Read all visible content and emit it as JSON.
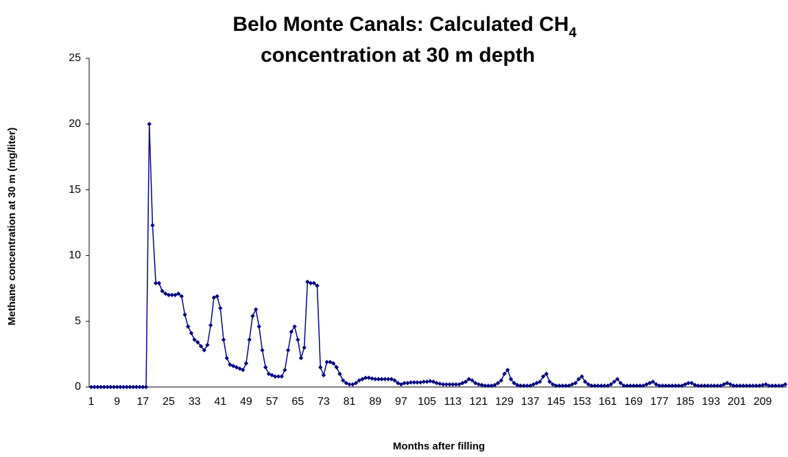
{
  "chart_data": {
    "type": "line",
    "title": {
      "text": "Belo Monte Canals: Calculated CH",
      "subscript": "4",
      "line2": "concentration at 30 m depth"
    },
    "x_label": "Months after filling",
    "y_label": "Methane concentration at 30 m (mg/liter)",
    "categories": [
      "1",
      null,
      null,
      null,
      null,
      null,
      null,
      null,
      "9",
      null,
      null,
      null,
      null,
      null,
      null,
      null,
      "17",
      null,
      null,
      null,
      null,
      null,
      null,
      null,
      "25",
      null,
      null,
      null,
      null,
      null,
      null,
      null,
      "33",
      null,
      null,
      null,
      null,
      null,
      null,
      null,
      "41",
      null,
      null,
      null,
      null,
      null,
      null,
      null,
      "49",
      null,
      null,
      null,
      null,
      null,
      null,
      null,
      "57",
      null,
      null,
      null,
      null,
      null,
      null,
      null,
      "65",
      null,
      null,
      null,
      null,
      null,
      null,
      null,
      "73",
      null,
      null,
      null,
      null,
      null,
      null,
      null,
      "81",
      null,
      null,
      null,
      null,
      null,
      null,
      null,
      "89",
      null,
      null,
      null,
      null,
      null,
      null,
      null,
      "97",
      null,
      null,
      null,
      null,
      null,
      null,
      null,
      "105",
      null,
      null,
      null,
      null,
      null,
      null,
      null,
      "113",
      null,
      null,
      null,
      null,
      null,
      null,
      null,
      "121",
      null,
      null,
      null,
      null,
      null,
      null,
      null,
      "129",
      null,
      null,
      null,
      null,
      null,
      null,
      null,
      "137",
      null,
      null,
      null,
      null,
      null,
      null,
      null,
      "145",
      null,
      null,
      null,
      null,
      null,
      null,
      null,
      "153",
      null,
      null,
      null,
      null,
      null,
      null,
      null,
      "161",
      null,
      null,
      null,
      null,
      null,
      null,
      null,
      "169",
      null,
      null,
      null,
      null,
      null,
      null,
      null,
      "177",
      null,
      null,
      null,
      null,
      null,
      null,
      null,
      "185",
      null,
      null,
      null,
      null,
      null,
      null,
      null,
      "193",
      null,
      null,
      null,
      null,
      null,
      null,
      null,
      "201",
      null,
      null,
      null,
      null,
      null,
      null,
      null,
      "209",
      null,
      null,
      null,
      null,
      null,
      null,
      null
    ],
    "series": [
      {
        "name": "Methane concentration",
        "color": "#000080",
        "values": [
          0,
          0,
          0,
          0,
          0,
          0,
          0,
          0,
          0,
          0,
          0,
          0,
          0,
          0,
          0,
          0,
          0,
          0,
          20,
          12.3,
          7.9,
          7.9,
          7.3,
          7.1,
          7.0,
          7.0,
          7.0,
          7.1,
          6.9,
          5.5,
          4.6,
          4.1,
          3.6,
          3.4,
          3.1,
          2.8,
          3.2,
          4.7,
          6.8,
          6.9,
          6.0,
          3.6,
          2.2,
          1.7,
          1.6,
          1.5,
          1.4,
          1.3,
          1.8,
          3.6,
          5.4,
          5.9,
          4.6,
          2.8,
          1.5,
          1.0,
          0.9,
          0.8,
          0.8,
          0.8,
          1.3,
          2.8,
          4.2,
          4.6,
          3.6,
          2.2,
          3.0,
          8.0,
          7.9,
          7.9,
          7.7,
          1.5,
          0.9,
          1.9,
          1.9,
          1.8,
          1.5,
          1.0,
          0.5,
          0.3,
          0.2,
          0.2,
          0.3,
          0.5,
          0.6,
          0.7,
          0.7,
          0.65,
          0.6,
          0.6,
          0.6,
          0.6,
          0.6,
          0.6,
          0.5,
          0.3,
          0.2,
          0.3,
          0.3,
          0.35,
          0.35,
          0.35,
          0.35,
          0.4,
          0.4,
          0.45,
          0.4,
          0.3,
          0.25,
          0.2,
          0.2,
          0.2,
          0.2,
          0.2,
          0.2,
          0.3,
          0.4,
          0.6,
          0.5,
          0.3,
          0.2,
          0.15,
          0.1,
          0.1,
          0.1,
          0.15,
          0.3,
          0.5,
          1.0,
          1.3,
          0.6,
          0.3,
          0.15,
          0.1,
          0.1,
          0.1,
          0.1,
          0.2,
          0.3,
          0.4,
          0.8,
          1.0,
          0.4,
          0.2,
          0.1,
          0.1,
          0.1,
          0.1,
          0.1,
          0.2,
          0.3,
          0.6,
          0.8,
          0.4,
          0.2,
          0.1,
          0.1,
          0.1,
          0.1,
          0.1,
          0.1,
          0.2,
          0.4,
          0.6,
          0.3,
          0.1,
          0.1,
          0.1,
          0.1,
          0.1,
          0.1,
          0.1,
          0.2,
          0.3,
          0.4,
          0.2,
          0.1,
          0.1,
          0.1,
          0.1,
          0.1,
          0.1,
          0.1,
          0.1,
          0.2,
          0.3,
          0.3,
          0.15,
          0.1,
          0.1,
          0.1,
          0.1,
          0.1,
          0.1,
          0.1,
          0.1,
          0.2,
          0.3,
          0.2,
          0.1,
          0.1,
          0.1,
          0.1,
          0.1,
          0.1,
          0.1,
          0.1,
          0.1,
          0.15,
          0.2,
          0.1,
          0.1,
          0.1,
          0.1,
          0.1,
          0.2
        ]
      }
    ],
    "ylim": [
      0,
      25
    ],
    "yticks": [
      0,
      5,
      10,
      15,
      20,
      25
    ],
    "grid": false,
    "legend": false
  }
}
